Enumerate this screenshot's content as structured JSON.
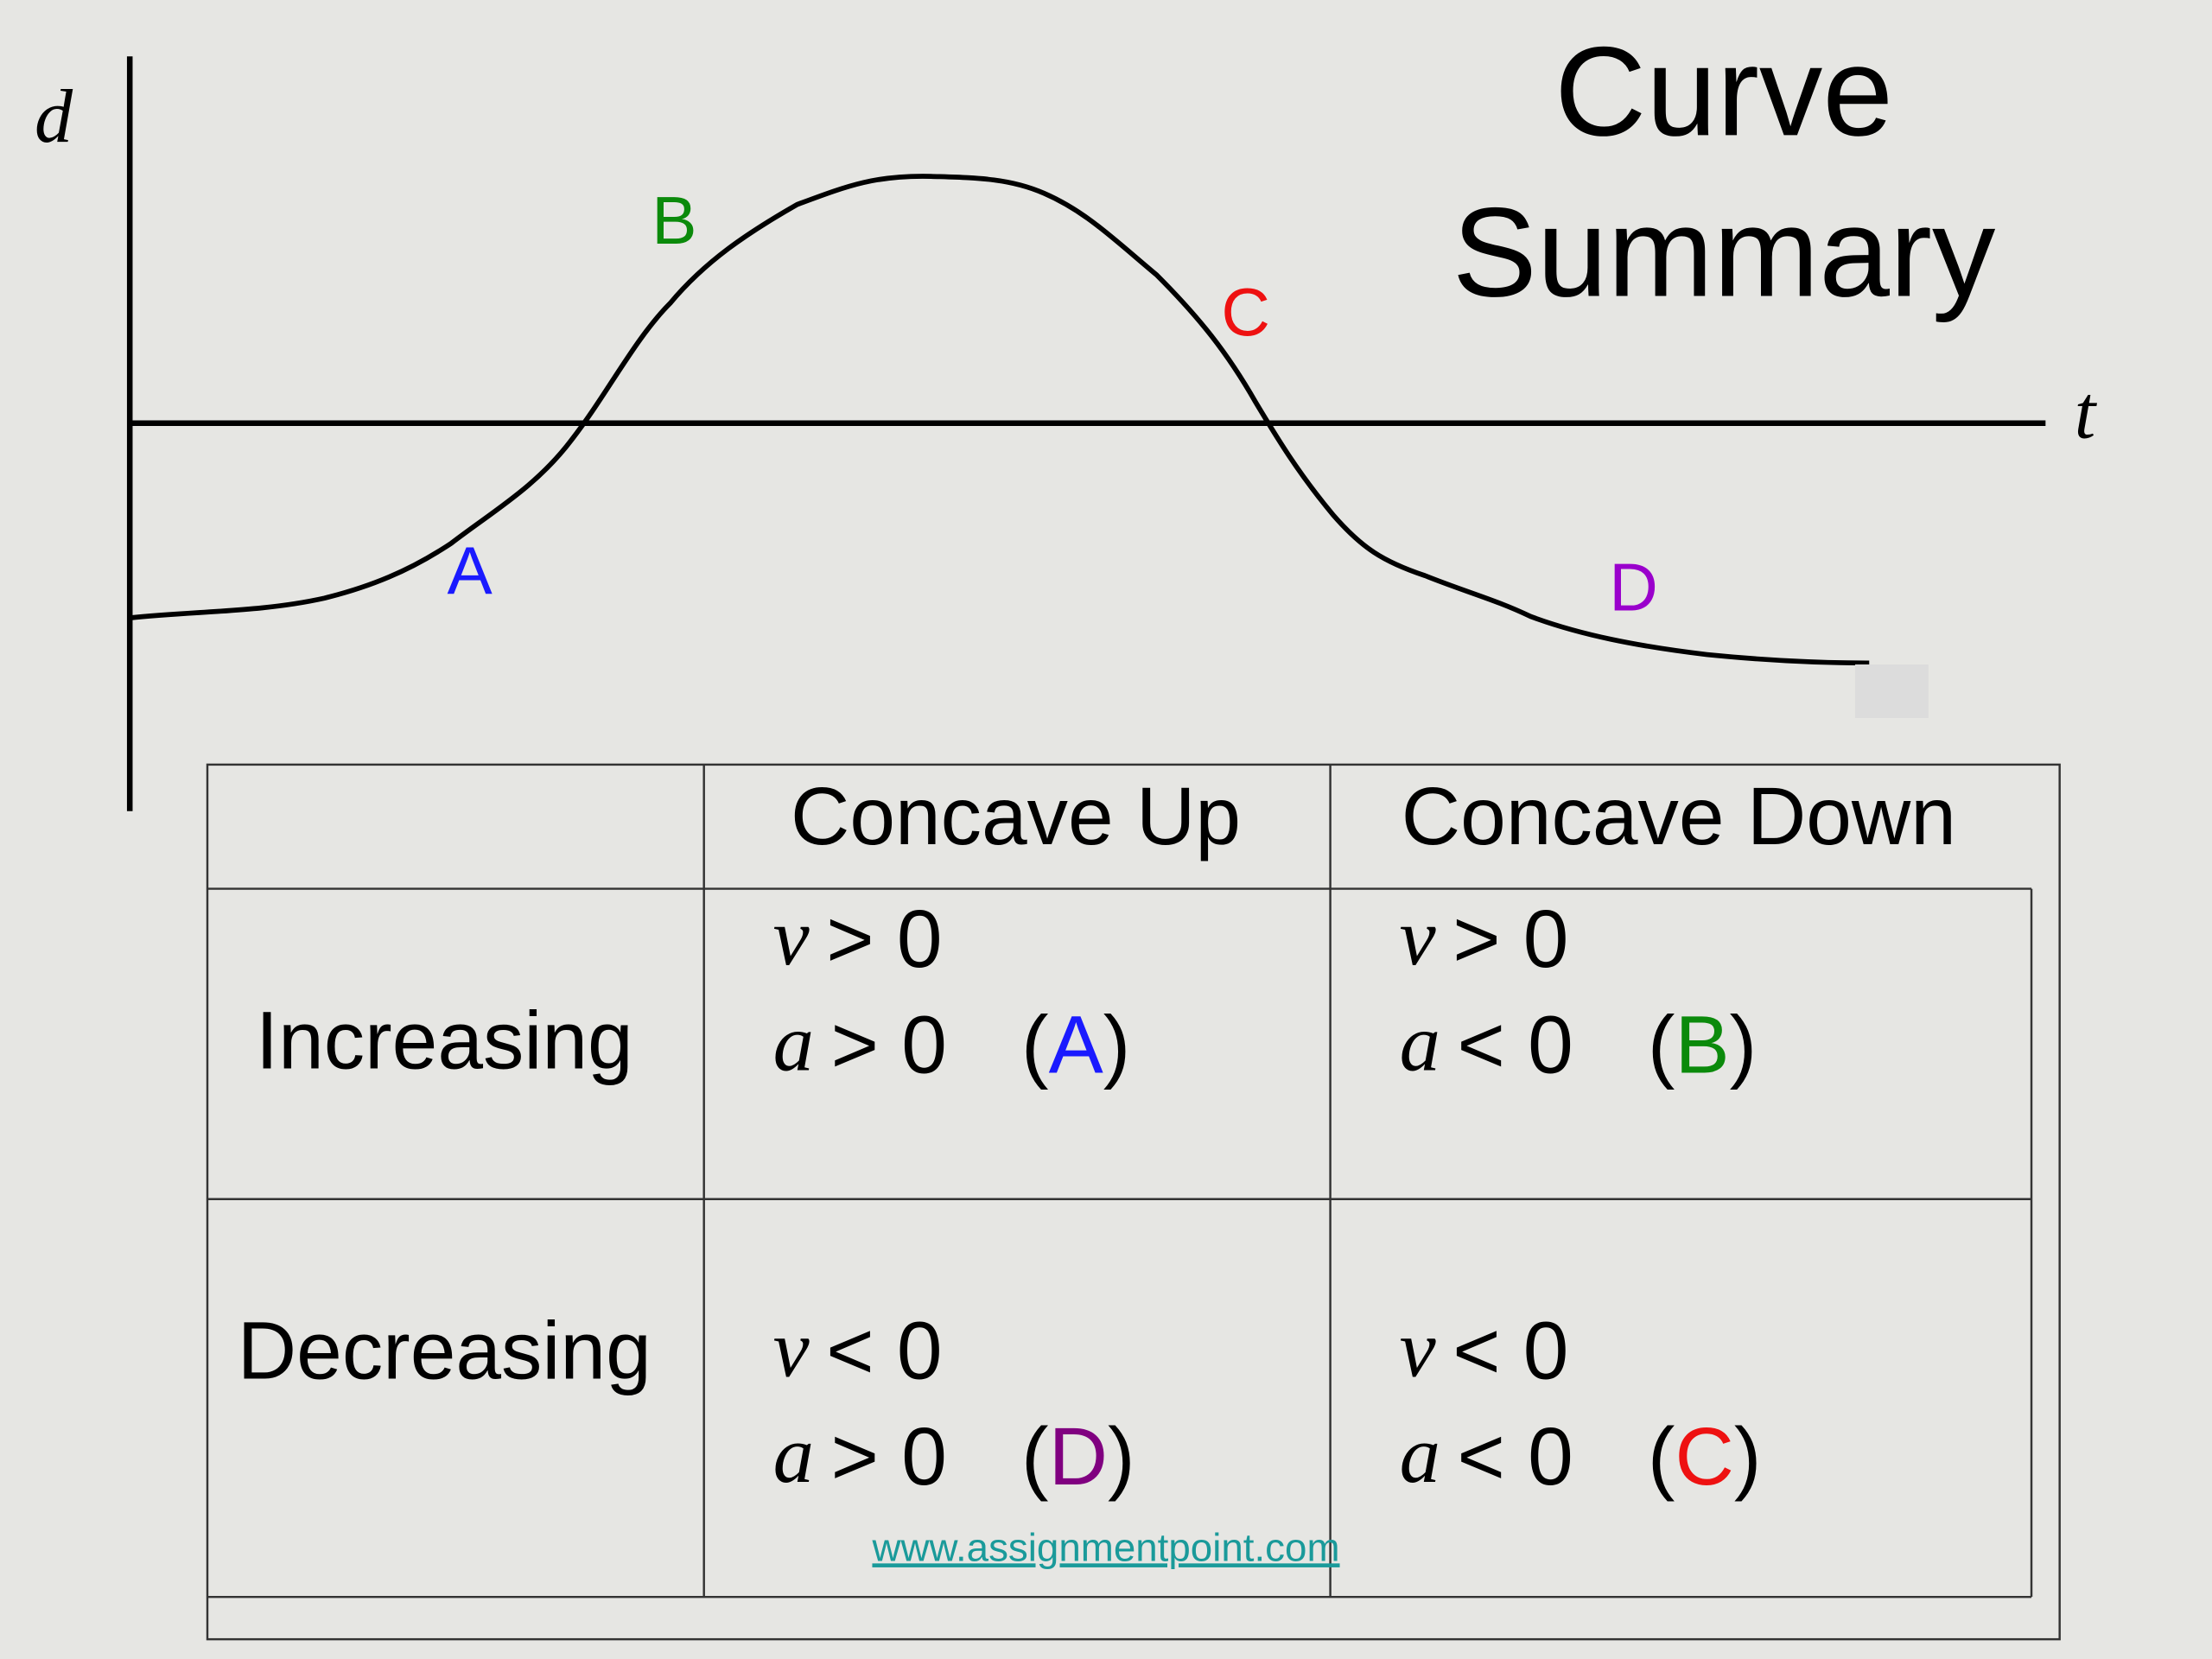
{
  "slide": {
    "title": {
      "line1": "Curve",
      "line2": "Summary"
    },
    "graph": {
      "y_label": "d",
      "x_label": "t",
      "points": [
        {
          "label": "A",
          "color": "#1a1aff"
        },
        {
          "label": "B",
          "color": "#0b8a0b"
        },
        {
          "label": "C",
          "color": "#ee1111"
        },
        {
          "label": "D",
          "color": "#9a00cc"
        }
      ]
    },
    "table": {
      "headers": [
        "Concave Up",
        "Concave Down"
      ],
      "rows": [
        {
          "label": "Increasing",
          "cells": [
            {
              "v": {
                "var": "v",
                "rel": "> 0"
              },
              "a": {
                "var": "a",
                "rel": "> 0"
              },
              "tag": {
                "open": "(",
                "letter": "A",
                "close": ")",
                "color": "#1a1aff"
              }
            },
            {
              "v": {
                "var": "v",
                "rel": "> 0"
              },
              "a": {
                "var": "a",
                "rel": "< 0"
              },
              "tag": {
                "open": "(",
                "letter": "B",
                "close": ")",
                "color": "#0b8a0b"
              }
            }
          ]
        },
        {
          "label": "Decreasing",
          "cells": [
            {
              "v": {
                "var": "v",
                "rel": "< 0"
              },
              "a": {
                "var": "a",
                "rel": "> 0"
              },
              "tag": {
                "open": "(",
                "letter": "D",
                "close": ")",
                "color": "#800080"
              }
            },
            {
              "v": {
                "var": "v",
                "rel": "< 0"
              },
              "a": {
                "var": "a",
                "rel": "< 0"
              },
              "tag": {
                "open": "(",
                "letter": "C",
                "close": ")",
                "color": "#ee1111"
              }
            }
          ]
        }
      ]
    },
    "footer_link": "www.assignmentpoint.com"
  }
}
